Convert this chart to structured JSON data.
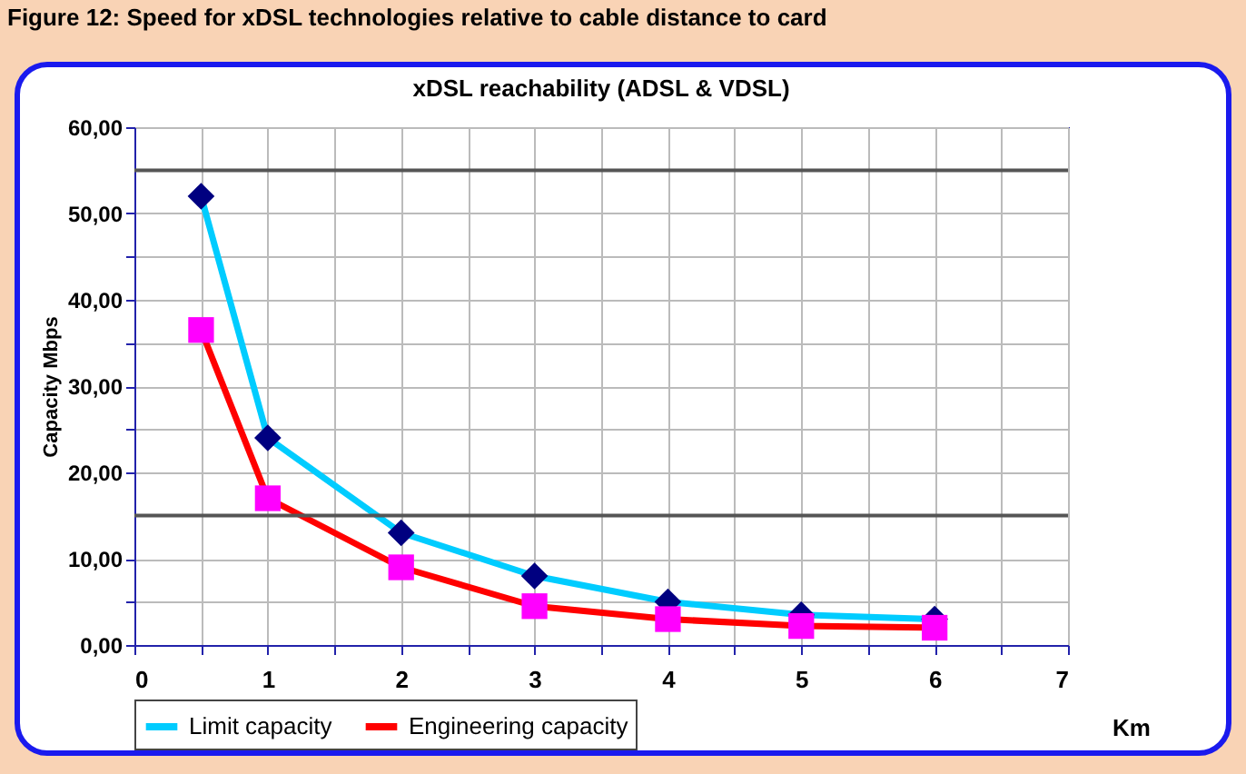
{
  "chart_data": {
    "type": "line",
    "title": "xDSL reachability (ADSL & VDSL)",
    "xlabel": "Km",
    "ylabel": "Capacity Mbps",
    "annotations": [
      "Figure 12: Speed for xDSL technologies relative to cable distance to card"
    ],
    "series": [
      {
        "name": "Limit capacity",
        "color": "#00ccff",
        "marker": "diamond",
        "x": [
          0.5,
          1,
          2,
          3,
          4,
          5,
          6
        ],
        "values": [
          52,
          24,
          13,
          8,
          5,
          3.5,
          3
        ]
      },
      {
        "name": "Engineering capacity",
        "color": "#ff0000",
        "marker": "square",
        "x": [
          0.5,
          1,
          2,
          3,
          4,
          5,
          6
        ],
        "values": [
          36.5,
          17,
          9,
          4.5,
          3,
          2.2,
          2
        ]
      }
    ],
    "xlim": [
      0,
      7
    ],
    "xticks": [
      0,
      {
        "value": 0.5,
        "label": null
      },
      1,
      {
        "value": 1.5,
        "label": null
      },
      2,
      {
        "value": 2.5,
        "label": null
      },
      3,
      {
        "value": 3.5,
        "label": null
      },
      4,
      {
        "value": 4.5,
        "label": null
      },
      5,
      {
        "value": 5.5,
        "label": null
      },
      6,
      {
        "value": 6.5,
        "label": null
      },
      7
    ],
    "ylim": [
      0,
      60
    ],
    "yticks": [
      {
        "value": 0,
        "label": "0,00"
      },
      {
        "value": 5,
        "label": null
      },
      {
        "value": 10,
        "label": "10,00"
      },
      {
        "value": 20,
        "label": "20,00"
      },
      {
        "value": 25,
        "label": null
      },
      {
        "value": 30,
        "label": "30,00"
      },
      {
        "value": 35,
        "label": null
      },
      {
        "value": 40,
        "label": "40,00"
      },
      {
        "value": 45,
        "label": null
      },
      {
        "value": 50,
        "label": "50,00"
      },
      {
        "value": 60,
        "label": "60,00"
      }
    ],
    "ref_lines": [
      {
        "axis": "y",
        "value": 55,
        "color": "#555555"
      },
      {
        "axis": "y",
        "value": 15,
        "color": "#555555"
      }
    ],
    "grid": true,
    "legend": "bottom",
    "line_style": "solid"
  }
}
